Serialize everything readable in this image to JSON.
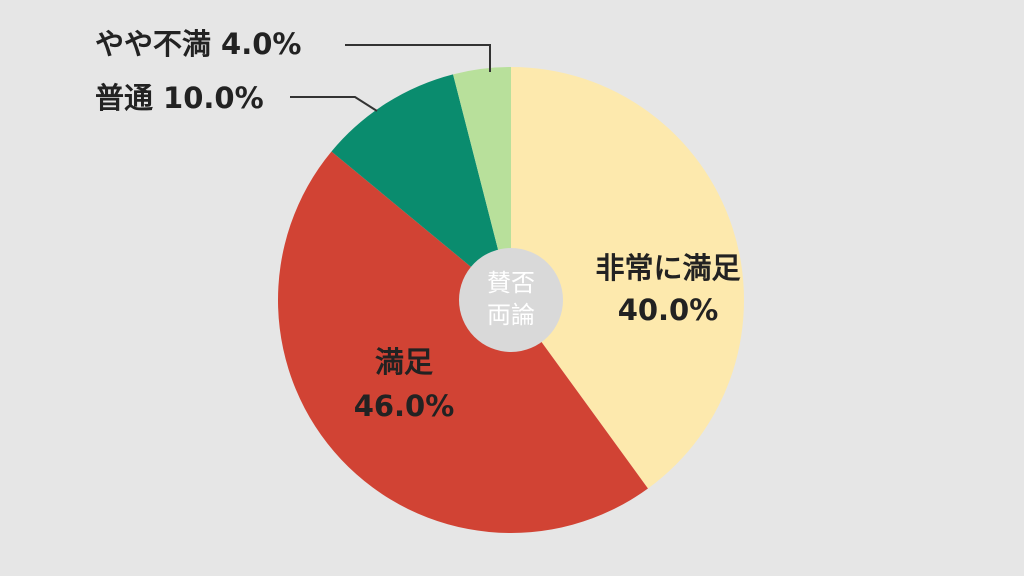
{
  "chart_data": {
    "type": "pie",
    "categories": [
      "非常に満足",
      "満足",
      "普通",
      "やや不満"
    ],
    "values": [
      40.0,
      46.0,
      10.0,
      4.0
    ],
    "value_labels": [
      "40.0%",
      "46.0%",
      "10.0%",
      "4.0%"
    ],
    "colors": [
      "#fde9ad",
      "#d14334",
      "#0a8c6e",
      "#b8e09b"
    ],
    "center_label": [
      "賛否",
      "両論"
    ]
  }
}
